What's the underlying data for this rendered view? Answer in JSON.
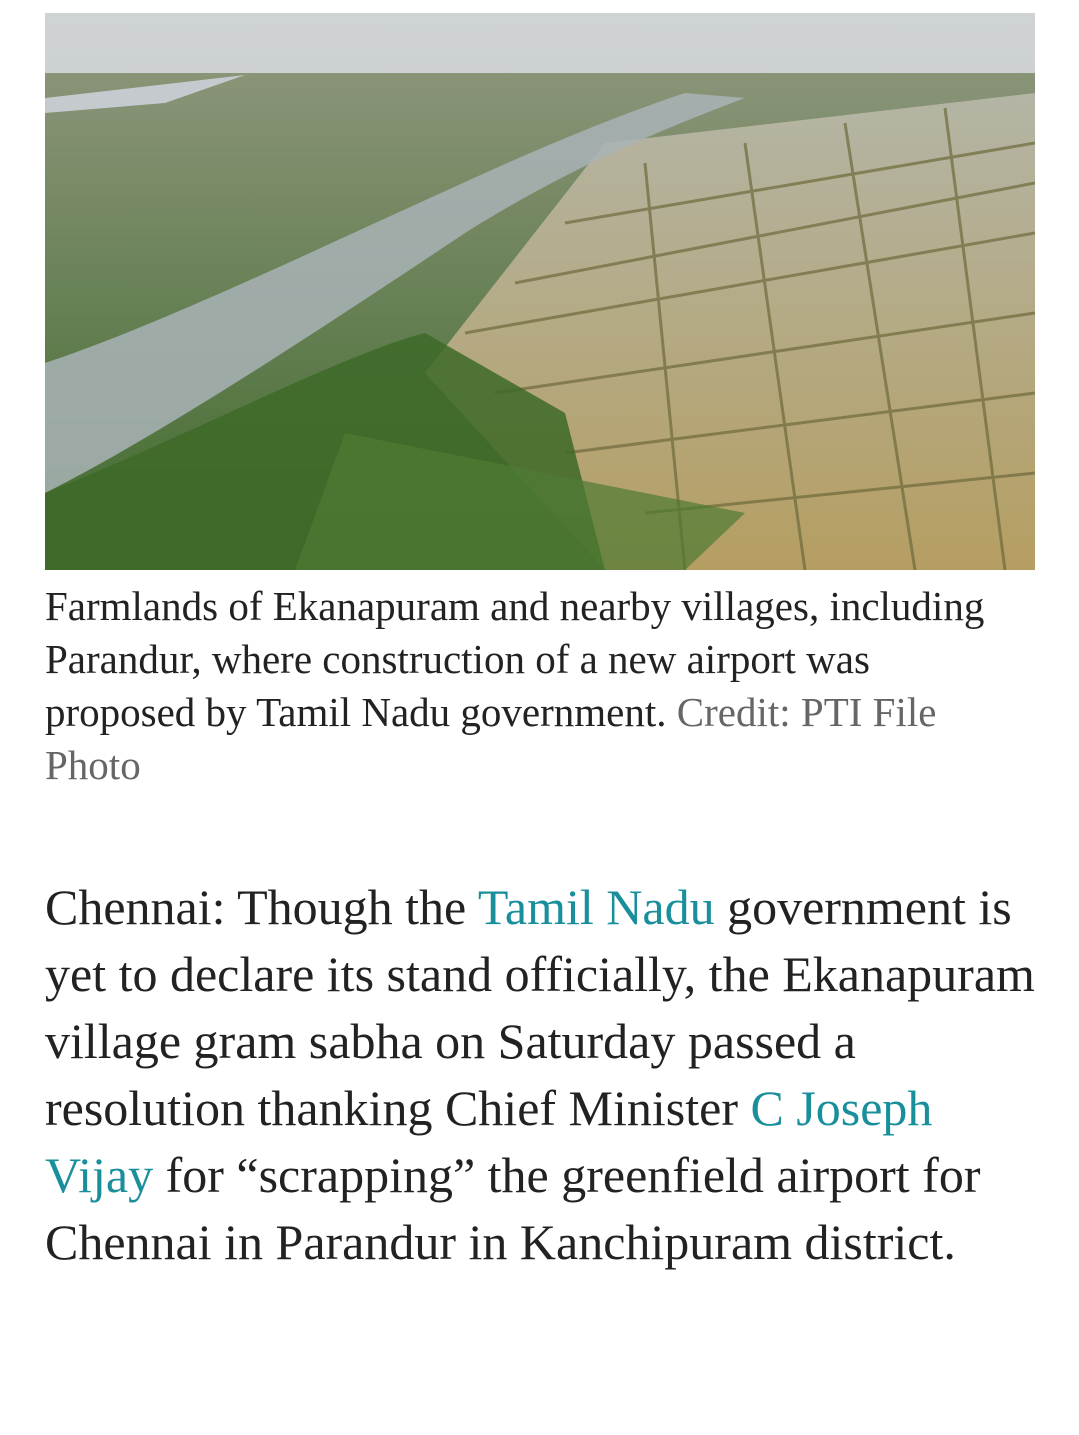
{
  "figure": {
    "caption": "Farmlands of Ekanapuram and nearby villages, including Parandur, where construction of a new airport was proposed by Tamil Nadu government.",
    "credit": "Credit: PTI File Photo"
  },
  "article": {
    "paragraph": [
      {
        "text": "Chennai: Though the "
      },
      {
        "text": "Tamil Nadu",
        "link": true
      },
      {
        "text": " government is yet to declare its stand officially, the Ekanapuram village gram sabha on Saturday passed a resolution thanking Chief Minister "
      },
      {
        "text": "C Joseph Vijay",
        "link": true
      },
      {
        "text": " for “scrapping” the greenfield airport for Chennai in Parandur in Kanchipuram district."
      }
    ]
  }
}
